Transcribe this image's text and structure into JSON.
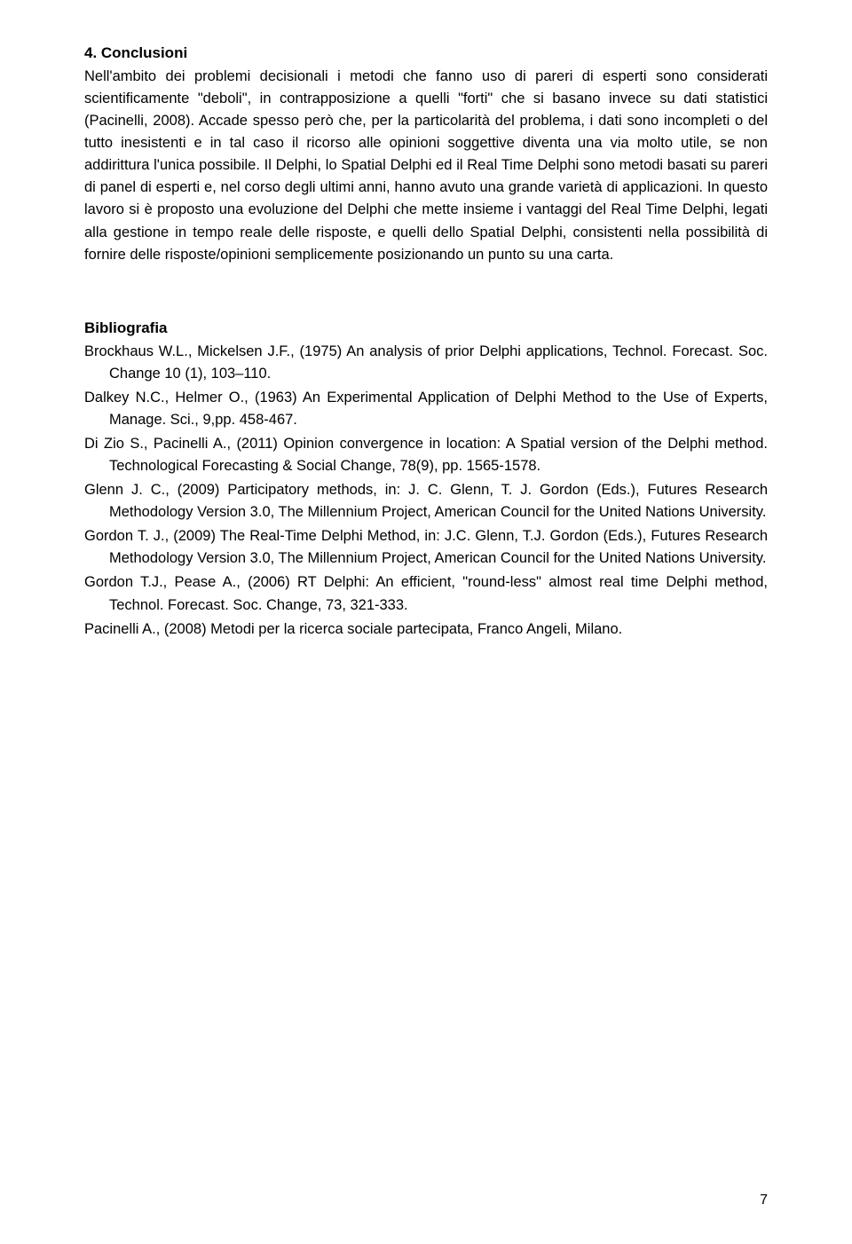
{
  "section": {
    "title": "4. Conclusioni",
    "body": "Nell'ambito dei problemi decisionali i metodi che fanno uso di pareri di esperti sono considerati scientificamente \"deboli\", in contrapposizione a quelli \"forti\" che si basano invece su dati statistici (Pacinelli, 2008). Accade spesso però che, per la particolarità del problema, i dati sono incompleti o del tutto inesistenti e in tal caso il ricorso alle opinioni soggettive diventa una via molto utile, se non addirittura l'unica possibile. Il Delphi, lo Spatial Delphi ed il Real Time Delphi sono metodi basati su pareri di panel di esperti e, nel corso degli ultimi anni, hanno avuto una grande varietà di applicazioni. In questo lavoro si è proposto una evoluzione del Delphi che mette insieme i vantaggi del Real Time Delphi, legati alla gestione in tempo reale delle risposte, e quelli dello Spatial Delphi, consistenti nella possibilità di fornire delle risposte/opinioni semplicemente posizionando un punto su una carta."
  },
  "bibliography": {
    "title": "Bibliografia",
    "references": [
      "Brockhaus W.L., Mickelsen J.F., (1975) An analysis of prior Delphi applications, Technol. Forecast. Soc. Change 10 (1), 103–110.",
      "Dalkey N.C., Helmer O., (1963) An Experimental Application of Delphi Method to the Use of Experts,  Manage. Sci., 9,pp. 458-467.",
      "Di Zio S., Pacinelli A., (2011) Opinion convergence in location: A Spatial version of the Delphi method. Technological Forecasting & Social Change, 78(9), pp. 1565-1578.",
      "Glenn J. C., (2009) Participatory methods, in: J. C. Glenn, T. J. Gordon (Eds.), Futures Research Methodology Version 3.0, The Millennium Project, American Council for the United Nations University.",
      "Gordon T. J., (2009) The Real-Time Delphi Method, in: J.C. Glenn, T.J. Gordon (Eds.), Futures Research Methodology Version 3.0, The Millennium Project, American Council for the United Nations University.",
      "Gordon T.J., Pease A., (2006) RT Delphi: An efficient, \"round-less\" almost real time Delphi method,  Technol. Forecast. Soc. Change, 73, 321-333.",
      "Pacinelli A., (2008) Metodi per la ricerca sociale partecipata, Franco Angeli, Milano."
    ]
  },
  "page_number": "7"
}
